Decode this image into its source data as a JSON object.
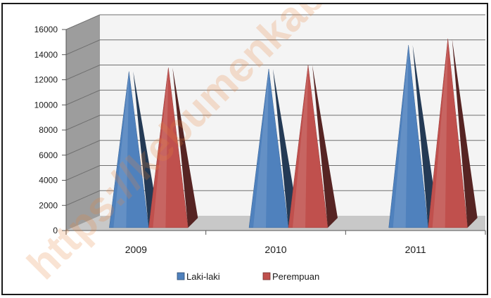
{
  "chart_data": {
    "type": "bar",
    "style": "3d-pyramid",
    "categories": [
      "2009",
      "2010",
      "2011"
    ],
    "series": [
      {
        "name": "Laki-laki",
        "values": [
          12100,
          12300,
          14200
        ],
        "color": "#4f81bd"
      },
      {
        "name": "Perempuan",
        "values": [
          12400,
          12600,
          14700
        ],
        "color": "#c0504d"
      }
    ],
    "yticks": [
      "0",
      "2000",
      "4000",
      "6000",
      "8000",
      "10000",
      "12000",
      "14000",
      "16000"
    ],
    "ylim": [
      0,
      16000
    ],
    "grid": true,
    "legend_position": "bottom"
  },
  "watermark": "https://kebumenkab.bps.go.id"
}
